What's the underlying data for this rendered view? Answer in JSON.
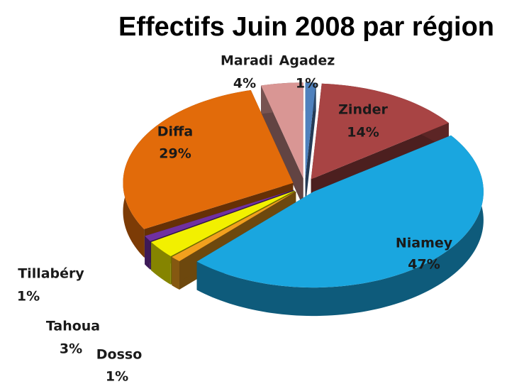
{
  "chart_data": {
    "type": "pie",
    "title": "Effectifs Juin 2008 par région",
    "categories": [
      "Agadez",
      "Zinder",
      "Niamey",
      "Dosso",
      "Tahoua",
      "Tillabéry",
      "Diffa",
      "Maradi"
    ],
    "values": [
      1,
      14,
      47,
      1,
      3,
      1,
      29,
      4
    ],
    "value_labels": [
      "1%",
      "14%",
      "47%",
      "1%",
      "3%",
      "1%",
      "29%",
      "4%"
    ],
    "colors": [
      "#4f81bd",
      "#a84444",
      "#1aa6df",
      "#f2a01e",
      "#f2f000",
      "#7030a0",
      "#e26b0a",
      "#d99694"
    ]
  }
}
